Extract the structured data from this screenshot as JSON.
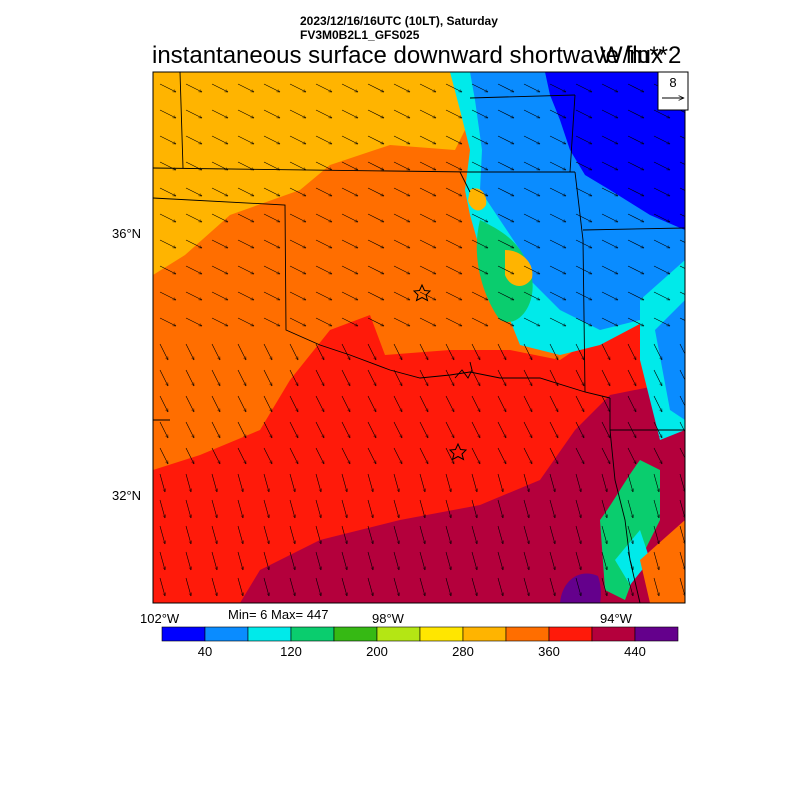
{
  "header": {
    "line1": "2023/12/16/16UTC (10LT), Saturday",
    "line2": "FV3M0B2L1_GFS025",
    "title": "instantaneous surface downward shortwave flux",
    "units": "W/m**2"
  },
  "map": {
    "lat_labels": [
      "36°N",
      "32°N"
    ],
    "lon_labels": [
      "102°W",
      "98°W",
      "94°W"
    ],
    "vector_ref": "8",
    "stations": [
      "star",
      "star"
    ]
  },
  "stats": {
    "text": "Min= 6 Max= 447"
  },
  "colorbar": {
    "tick_labels": [
      "40",
      "120",
      "200",
      "280",
      "360",
      "440"
    ],
    "colors": [
      "#0000ff",
      "#0a8cff",
      "#00eaea",
      "#0acd6e",
      "#36b914",
      "#b4e614",
      "#ffe600",
      "#ffb400",
      "#ff6e00",
      "#ff1a0a",
      "#b4003c",
      "#64008c"
    ]
  }
}
